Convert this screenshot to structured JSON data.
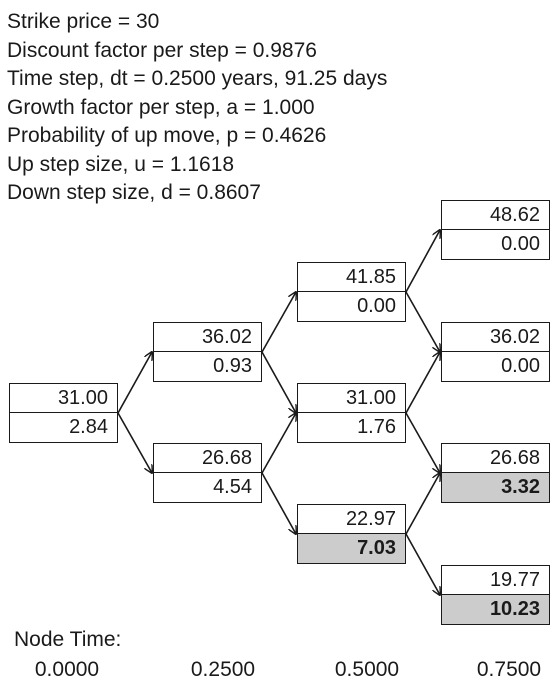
{
  "params": [
    "Strike price = 30",
    "Discount factor per step = 0.9876",
    "Time step, dt = 0.2500 years, 91.25 days",
    "Growth factor per step, a = 1.000",
    "Probability of up move, p = 0.4626",
    "Up step size, u = 1.1618",
    "Down step size, d = 0.8607"
  ],
  "nodes": [
    {
      "id": "n0_0",
      "step": 0,
      "price": "31.00",
      "value": "2.84",
      "exercised": false
    },
    {
      "id": "n1_1",
      "step": 1,
      "price": "36.02",
      "value": "0.93",
      "exercised": false
    },
    {
      "id": "n1_0",
      "step": 1,
      "price": "26.68",
      "value": "4.54",
      "exercised": false
    },
    {
      "id": "n2_2",
      "step": 2,
      "price": "41.85",
      "value": "0.00",
      "exercised": false
    },
    {
      "id": "n2_1",
      "step": 2,
      "price": "31.00",
      "value": "1.76",
      "exercised": false
    },
    {
      "id": "n2_0",
      "step": 2,
      "price": "22.97",
      "value": "7.03",
      "exercised": true
    },
    {
      "id": "n3_3",
      "step": 3,
      "price": "48.62",
      "value": "0.00",
      "exercised": false
    },
    {
      "id": "n3_2",
      "step": 3,
      "price": "36.02",
      "value": "0.00",
      "exercised": false
    },
    {
      "id": "n3_1",
      "step": 3,
      "price": "26.68",
      "value": "3.32",
      "exercised": true
    },
    {
      "id": "n3_0",
      "step": 3,
      "price": "19.77",
      "value": "10.23",
      "exercised": true
    }
  ],
  "edges": [
    [
      "n0_0",
      "n1_1"
    ],
    [
      "n0_0",
      "n1_0"
    ],
    [
      "n1_1",
      "n2_2"
    ],
    [
      "n1_1",
      "n2_1"
    ],
    [
      "n1_0",
      "n2_1"
    ],
    [
      "n1_0",
      "n2_0"
    ],
    [
      "n2_2",
      "n3_3"
    ],
    [
      "n2_2",
      "n3_2"
    ],
    [
      "n2_1",
      "n3_2"
    ],
    [
      "n2_1",
      "n3_1"
    ],
    [
      "n2_0",
      "n3_1"
    ],
    [
      "n2_0",
      "n3_0"
    ]
  ],
  "footer": {
    "label": "Node Time:",
    "times": [
      "0.0000",
      "0.2500",
      "0.5000",
      "0.7500"
    ]
  },
  "colors": {
    "line": "#1a1a1a",
    "exercised_fill": "#cccccc"
  }
}
